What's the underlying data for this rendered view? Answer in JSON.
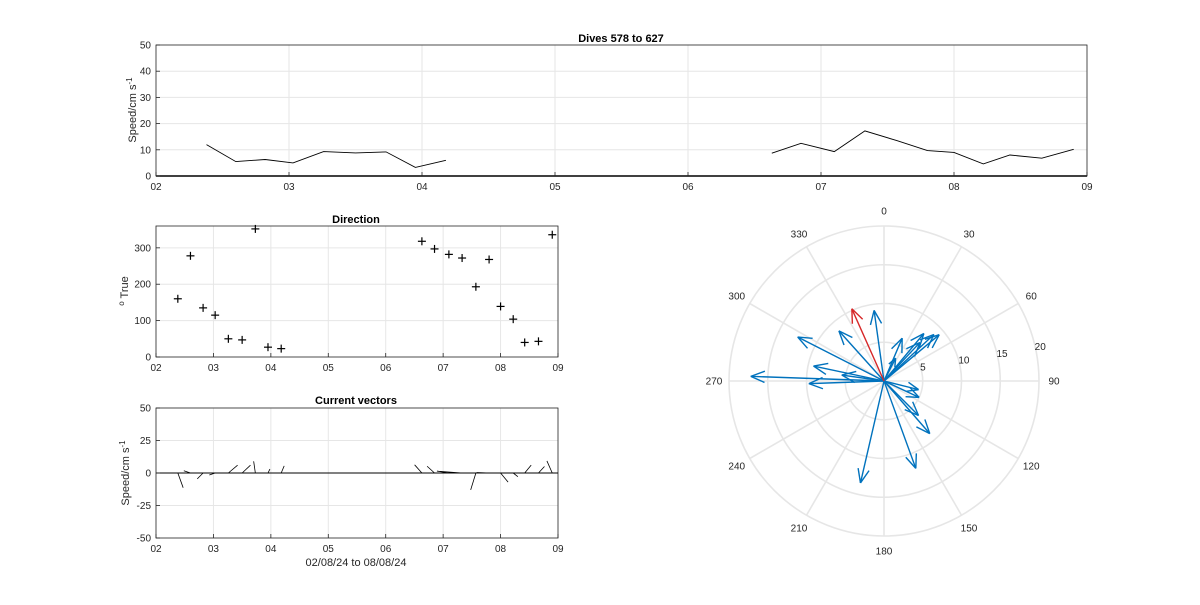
{
  "figure": {
    "background": "#ffffff"
  },
  "chart_data": [
    {
      "id": "speed",
      "type": "line",
      "title": "Dives 578 to 627",
      "ylabel": "Speed/cm s",
      "ylabel_sup": "-1",
      "xlim": [
        2,
        9
      ],
      "ylim": [
        0,
        50
      ],
      "xticks": [
        2,
        3,
        4,
        5,
        6,
        7,
        8,
        9
      ],
      "xtick_labels": [
        "02",
        "03",
        "04",
        "05",
        "06",
        "07",
        "08",
        "09"
      ],
      "yticks": [
        0,
        10,
        20,
        30,
        40,
        50
      ],
      "ytick_labels": [
        "0",
        "10",
        "20",
        "30",
        "40",
        "50"
      ],
      "grid": true,
      "line_color": "#000000",
      "segments": [
        {
          "x": [
            2.38,
            2.6,
            2.82,
            3.03,
            3.26,
            3.5,
            3.73,
            3.95,
            4.18
          ],
          "y": [
            12.0,
            5.5,
            6.3,
            5.0,
            9.3,
            8.8,
            9.2,
            3.3,
            6.0
          ]
        },
        {
          "x": [
            6.63,
            6.85,
            7.1,
            7.33,
            7.57,
            7.8,
            8.0,
            8.22,
            8.42,
            8.66,
            8.9
          ],
          "y": [
            8.7,
            12.5,
            9.3,
            17.2,
            13.5,
            9.7,
            9.0,
            4.6,
            8.0,
            6.8,
            10.2
          ]
        }
      ]
    },
    {
      "id": "direction",
      "type": "scatter",
      "title": "Direction",
      "ylabel": "True",
      "ylabel_sup": "o",
      "xlim": [
        2,
        9
      ],
      "ylim": [
        0,
        360
      ],
      "xticks": [
        2,
        3,
        4,
        5,
        6,
        7,
        8,
        9
      ],
      "xtick_labels": [
        "02",
        "03",
        "04",
        "05",
        "06",
        "07",
        "08",
        "09"
      ],
      "yticks": [
        0,
        100,
        200,
        300
      ],
      "ytick_labels": [
        "0",
        "100",
        "200",
        "300"
      ],
      "grid": true,
      "marker": "+",
      "marker_color": "#000000",
      "x": [
        2.38,
        2.6,
        2.82,
        3.03,
        3.26,
        3.5,
        3.73,
        3.95,
        4.18,
        6.63,
        6.85,
        7.1,
        7.33,
        7.57,
        7.8,
        8.0,
        8.22,
        8.42,
        8.66,
        8.9
      ],
      "y": [
        160,
        278,
        135,
        115,
        50,
        47,
        352,
        27,
        23,
        318,
        297,
        282,
        272,
        193,
        268,
        139,
        104,
        40,
        43,
        336
      ]
    },
    {
      "id": "vectors",
      "type": "quiver",
      "title": "Current vectors",
      "ylabel": "Speed/cm s",
      "ylabel_sup": "-1",
      "xlabel": "02/08/24 to 08/08/24",
      "xlim": [
        2,
        9
      ],
      "ylim": [
        -50,
        50
      ],
      "xticks": [
        2,
        3,
        4,
        5,
        6,
        7,
        8,
        9
      ],
      "xtick_labels": [
        "02",
        "03",
        "04",
        "05",
        "06",
        "07",
        "08",
        "09"
      ],
      "yticks": [
        -50,
        -25,
        0,
        25,
        50
      ],
      "ytick_labels": [
        "-50",
        "-25",
        "0",
        "25",
        "50"
      ],
      "grid": true,
      "line_color": "#000000",
      "x": [
        2.38,
        2.6,
        2.82,
        3.03,
        3.26,
        3.5,
        3.73,
        3.95,
        4.18,
        6.63,
        6.85,
        7.1,
        7.33,
        7.57,
        7.8,
        8.0,
        8.22,
        8.42,
        8.66,
        8.9
      ],
      "u": [
        4.1,
        -5.1,
        -4.5,
        -4.5,
        7.1,
        6.4,
        -1.3,
        1.5,
        2.3,
        -5.6,
        -5.7,
        -9.2,
        -16.9,
        -4.0,
        -9.6,
        5.8,
        3.6,
        5.0,
        4.6,
        -4.1
      ],
      "v": [
        -11.3,
        1.7,
        -4.5,
        -1.5,
        6.0,
        6.0,
        9.0,
        3.0,
        5.5,
        6.3,
        5.2,
        1.5,
        1.2,
        -13.0,
        0.4,
        -7.0,
        -2.8,
        6.1,
        5.0,
        9.3
      ]
    },
    {
      "id": "polar",
      "type": "polar",
      "angle_ticks": [
        0,
        30,
        60,
        90,
        120,
        150,
        180,
        210,
        240,
        270,
        300,
        330
      ],
      "angle_labels": [
        "0",
        "30",
        "60",
        "90",
        "120",
        "150",
        "180",
        "210",
        "240",
        "270",
        "300",
        "330"
      ],
      "rmax": 20,
      "rticks": [
        5,
        10,
        15,
        20
      ],
      "rtick_labels": [
        "5",
        "10",
        "15",
        "20"
      ],
      "grid": true,
      "arrow_color": "#0072BD",
      "highlight_color": "#D62728",
      "highlight_index": 19,
      "r": [
        12.0,
        5.5,
        6.3,
        5.0,
        9.3,
        8.8,
        9.2,
        3.3,
        6.0,
        8.7,
        12.5,
        9.3,
        17.2,
        13.5,
        9.7,
        9.0,
        4.6,
        8.0,
        6.8,
        10.2
      ],
      "theta": [
        160,
        278,
        135,
        115,
        50,
        47,
        352,
        27,
        23,
        318,
        297,
        282,
        272,
        193,
        268,
        139,
        104,
        40,
        43,
        336
      ]
    }
  ]
}
